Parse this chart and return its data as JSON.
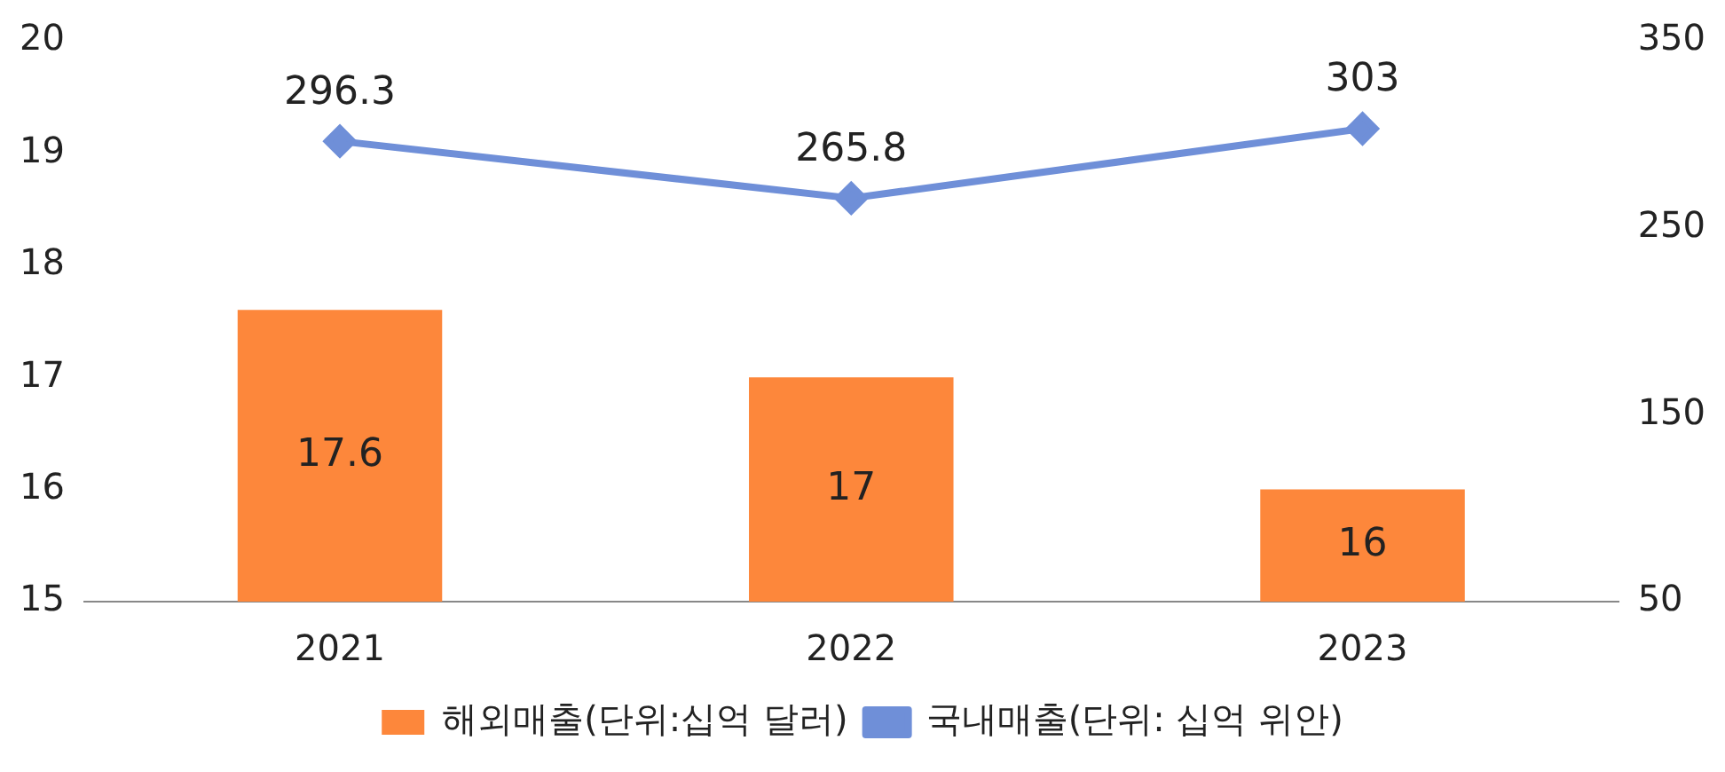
{
  "chart_data": {
    "type": "bar",
    "categories": [
      "2021",
      "2022",
      "2023"
    ],
    "series": [
      {
        "name": "해외매출(단위:십억 달러)",
        "color": "#fd873b",
        "values": [
          17.6,
          17,
          16
        ]
      },
      {
        "name": "국내매출(단위: 십억 위안)",
        "type": "line",
        "axis": "y2",
        "color": "#6f8fd8",
        "values": [
          296.3,
          265.8,
          303
        ],
        "marker": "diamond"
      }
    ],
    "ylim": [
      15,
      20
    ],
    "yticks": [
      15,
      16,
      17,
      18,
      19,
      20
    ],
    "y2lim": [
      50,
      350
    ],
    "y2ticks": [
      50,
      150,
      250,
      350
    ],
    "grid": false,
    "legend": "bottom",
    "data_labels": true
  }
}
